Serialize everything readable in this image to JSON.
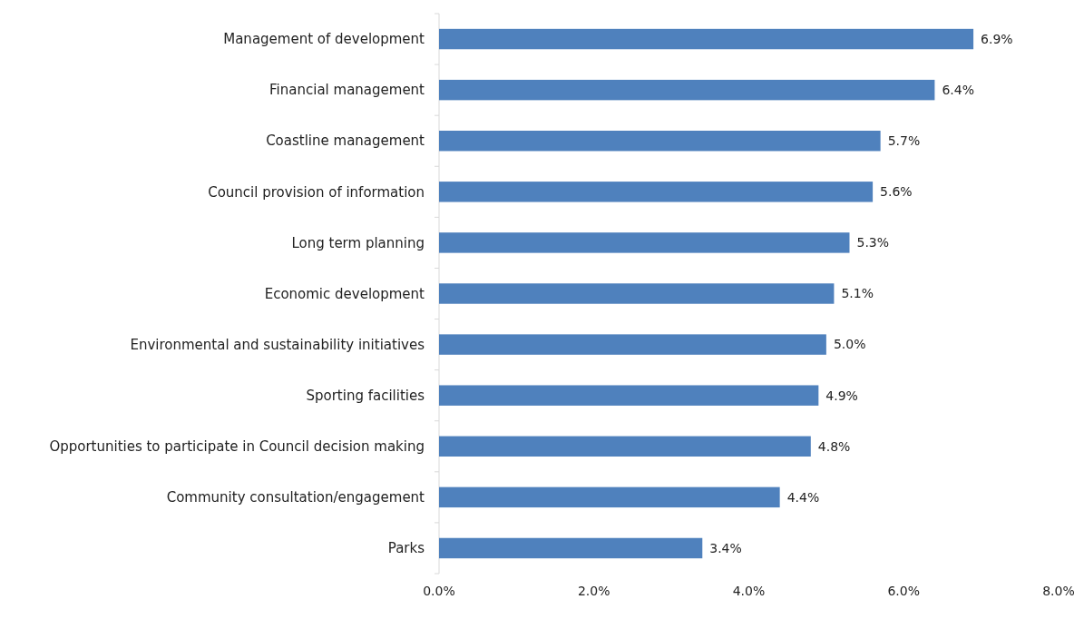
{
  "chart_data": {
    "type": "bar",
    "orientation": "horizontal",
    "categories": [
      "Management of development",
      "Financial management",
      "Coastline management",
      "Council provision of information",
      "Long term planning",
      "Economic development",
      "Environmental and sustainability initiatives",
      "Sporting facilities",
      "Opportunities to participate in Council decision making",
      "Community consultation/engagement",
      "Parks"
    ],
    "values": [
      6.9,
      6.4,
      5.7,
      5.6,
      5.3,
      5.1,
      5.0,
      4.9,
      4.8,
      4.4,
      3.4
    ],
    "value_labels": [
      "6.9%",
      "6.4%",
      "5.7%",
      "5.6%",
      "5.3%",
      "5.1%",
      "5.0%",
      "4.9%",
      "4.8%",
      "4.4%",
      "3.4%"
    ],
    "color": "#4f81bd",
    "xlim": [
      0,
      8
    ],
    "xticks": [
      {
        "value": 0,
        "label": "0.0%"
      },
      {
        "value": 2,
        "label": "2.0%"
      },
      {
        "value": 4,
        "label": "4.0%"
      },
      {
        "value": 6,
        "label": "6.0%"
      },
      {
        "value": 8,
        "label": "8.0%"
      }
    ],
    "grid": false
  }
}
